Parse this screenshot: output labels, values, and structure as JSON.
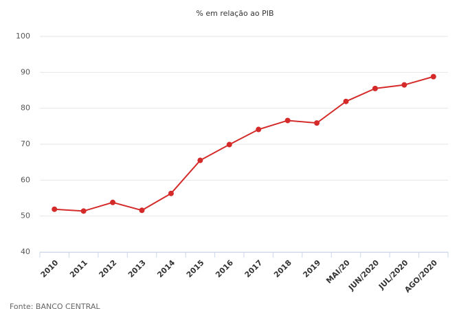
{
  "chart_data": {
    "type": "line",
    "title": "% em relação ao PIB",
    "categories": [
      "2010",
      "2011",
      "2012",
      "2013",
      "2014",
      "2015",
      "2016",
      "2017",
      "2018",
      "2019",
      "MAI/20",
      "JUN/2020",
      "JUL/2020",
      "AGO/2020"
    ],
    "series": [
      {
        "name": "% em relação ao PIB",
        "color": "#d42a2a",
        "values": [
          51.9,
          51.4,
          53.8,
          51.6,
          56.3,
          65.5,
          69.9,
          74.1,
          76.6,
          75.9,
          81.9,
          85.5,
          86.5,
          88.8
        ]
      }
    ],
    "ylim": [
      40,
      100
    ],
    "yticks": [
      40,
      50,
      60,
      70,
      80,
      90,
      100
    ],
    "grid": true,
    "source": "Fonte: BANCO CENTRAL"
  }
}
